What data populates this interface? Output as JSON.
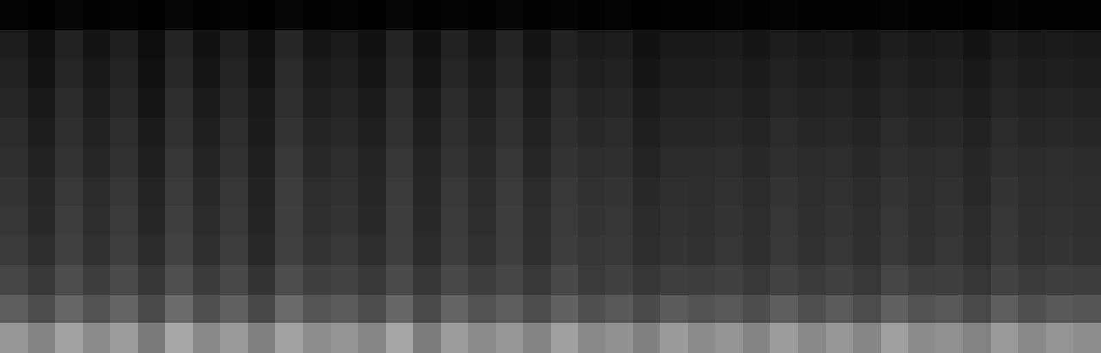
{
  "chart_data": {
    "type": "heatmap",
    "tick_labels": false,
    "grid": false,
    "cells": [
      [
        62,
        55,
        66,
        58,
        64,
        52,
        68,
        57,
        63,
        54,
        66,
        59,
        61,
        56,
        67,
        53,
        64,
        58,
        62,
        55,
        65,
        57,
        60,
        54,
        63,
        58,
        61,
        55,
        64,
        57,
        62,
        56,
        65,
        58,
        60,
        55,
        63,
        57,
        61,
        59
      ],
      [
        42,
        36,
        45,
        38,
        44,
        35,
        47,
        37,
        43,
        34,
        46,
        39,
        41,
        36,
        45,
        35,
        44,
        38,
        42,
        36,
        43,
        37,
        40,
        35,
        41,
        38,
        40,
        36,
        42,
        37,
        41,
        36,
        43,
        38,
        40,
        35,
        42,
        37,
        40,
        39
      ],
      [
        33,
        27,
        36,
        29,
        35,
        26,
        37,
        28,
        34,
        25,
        36,
        30,
        32,
        27,
        35,
        26,
        34,
        29,
        33,
        27,
        34,
        28,
        31,
        26,
        30,
        29,
        31,
        27,
        32,
        28,
        31,
        27,
        33,
        29,
        30,
        26,
        32,
        28,
        30,
        29
      ],
      [
        28,
        22,
        31,
        24,
        30,
        21,
        32,
        23,
        29,
        20,
        31,
        25,
        27,
        22,
        30,
        21,
        29,
        24,
        30,
        23,
        29,
        26,
        27,
        22,
        25,
        24,
        26,
        23,
        27,
        24,
        26,
        23,
        27,
        24,
        26,
        22,
        27,
        24,
        25,
        24
      ],
      [
        26,
        20,
        29,
        22,
        28,
        19,
        30,
        21,
        27,
        18,
        30,
        23,
        25,
        20,
        29,
        20,
        28,
        22,
        29,
        22,
        28,
        25,
        26,
        21,
        24,
        23,
        25,
        22,
        26,
        23,
        25,
        22,
        26,
        23,
        25,
        21,
        26,
        23,
        24,
        23
      ],
      [
        25,
        19,
        27,
        21,
        26,
        18,
        28,
        20,
        26,
        17,
        29,
        22,
        24,
        19,
        28,
        19,
        27,
        21,
        28,
        21,
        27,
        24,
        25,
        20,
        23,
        22,
        24,
        21,
        25,
        22,
        24,
        21,
        25,
        22,
        24,
        20,
        25,
        22,
        23,
        22
      ],
      [
        23,
        17,
        25,
        19,
        24,
        16,
        26,
        18,
        24,
        16,
        27,
        20,
        22,
        18,
        26,
        18,
        25,
        20,
        26,
        19,
        25,
        22,
        23,
        18,
        21,
        21,
        22,
        20,
        23,
        21,
        22,
        20,
        23,
        21,
        22,
        19,
        23,
        21,
        22,
        21
      ],
      [
        21,
        15,
        23,
        17,
        22,
        14,
        24,
        16,
        22,
        14,
        25,
        18,
        20,
        16,
        24,
        16,
        23,
        18,
        24,
        17,
        23,
        20,
        21,
        16,
        19,
        19,
        20,
        18,
        21,
        19,
        20,
        18,
        21,
        19,
        20,
        17,
        21,
        19,
        20,
        19
      ],
      [
        19,
        13,
        21,
        15,
        20,
        12,
        22,
        14,
        20,
        13,
        23,
        16,
        18,
        14,
        22,
        14,
        21,
        16,
        22,
        15,
        21,
        18,
        19,
        14,
        17,
        17,
        18,
        16,
        19,
        17,
        18,
        16,
        19,
        17,
        18,
        15,
        19,
        17,
        18,
        17
      ],
      [
        17,
        11,
        19,
        13,
        18,
        10,
        20,
        12,
        18,
        11,
        21,
        14,
        16,
        12,
        20,
        12,
        19,
        14,
        20,
        13,
        19,
        16,
        17,
        12,
        15,
        15,
        16,
        14,
        17,
        15,
        16,
        14,
        17,
        15,
        16,
        13,
        17,
        15,
        16,
        15
      ],
      [
        15,
        9,
        17,
        11,
        16,
        8,
        18,
        10,
        16,
        9,
        19,
        12,
        14,
        10,
        18,
        10,
        17,
        12,
        18,
        11,
        17,
        14,
        15,
        10,
        13,
        13,
        14,
        12,
        15,
        13,
        14,
        12,
        15,
        13,
        14,
        11,
        15,
        13,
        14,
        13
      ],
      [
        4,
        2,
        5,
        3,
        4,
        2,
        5,
        3,
        4,
        2,
        5,
        3,
        4,
        2,
        5,
        3,
        4,
        3,
        5,
        3,
        4,
        3,
        4,
        2,
        3,
        3,
        4,
        3,
        4,
        3,
        3,
        3,
        4,
        3,
        3,
        2,
        4,
        3,
        3,
        3
      ]
    ]
  }
}
